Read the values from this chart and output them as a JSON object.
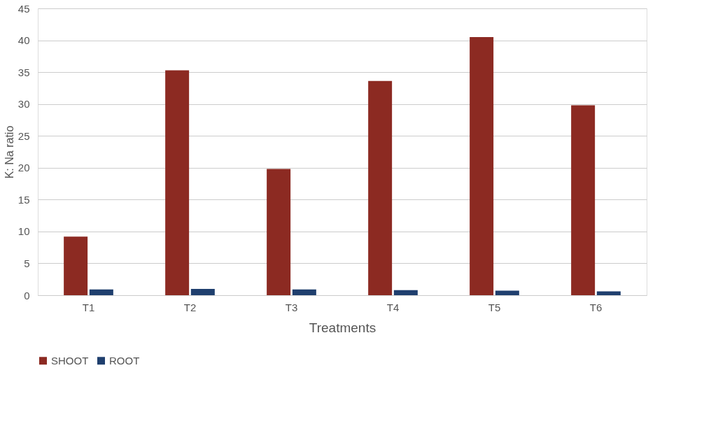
{
  "chart_data": {
    "type": "bar",
    "xlabel": "Treatments",
    "ylabel": "K: Na ratio",
    "categories": [
      "T1",
      "T2",
      "T3",
      "T4",
      "T5",
      "T6"
    ],
    "series": [
      {
        "name": "SHOOT",
        "color": "#8c2a22",
        "values": [
          9.2,
          35.3,
          19.8,
          33.6,
          40.5,
          29.8
        ]
      },
      {
        "name": "ROOT",
        "color": "#1f3f6e",
        "values": [
          0.9,
          1.0,
          0.9,
          0.8,
          0.7,
          0.6
        ]
      }
    ],
    "ylim": [
      0,
      45
    ],
    "yticks": [
      0,
      5,
      10,
      15,
      20,
      25,
      30,
      35,
      40,
      45
    ],
    "grid": "y",
    "legend": "bottom"
  }
}
